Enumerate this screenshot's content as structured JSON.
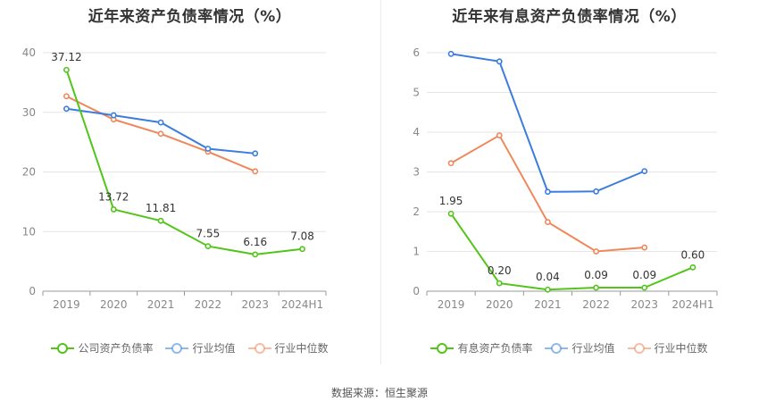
{
  "footer": {
    "source_label": "数据来源：恒生聚源"
  },
  "chart_data": [
    {
      "type": "line",
      "title": "近年来资产负债率情况（%）",
      "categories": [
        "2019",
        "2020",
        "2021",
        "2022",
        "2023",
        "2024H1"
      ],
      "ylim": [
        0,
        40
      ],
      "yticks": [
        0,
        10,
        20,
        30,
        40
      ],
      "grid": true,
      "legend_position": "bottom",
      "series": [
        {
          "name": "公司资产负债率",
          "color": "#52c41a",
          "show_labels": true,
          "values": [
            37.12,
            13.72,
            11.81,
            7.55,
            6.16,
            7.08
          ],
          "labels": [
            "37.12",
            "13.72",
            "11.81",
            "7.55",
            "6.16",
            "7.08"
          ]
        },
        {
          "name": "行业均值",
          "color": "#3b7ddd",
          "show_labels": false,
          "values": [
            30.6,
            29.5,
            28.3,
            23.9,
            23.1,
            null
          ]
        },
        {
          "name": "行业中位数",
          "color": "#f0875a",
          "show_labels": false,
          "values": [
            32.7,
            28.8,
            26.4,
            23.4,
            20.1,
            null
          ]
        }
      ]
    },
    {
      "type": "line",
      "title": "近年来有息资产负债率情况（%）",
      "categories": [
        "2019",
        "2020",
        "2021",
        "2022",
        "2023",
        "2024H1"
      ],
      "ylim": [
        0,
        6
      ],
      "yticks": [
        0,
        1,
        2,
        3,
        4,
        5,
        6
      ],
      "grid": true,
      "legend_position": "bottom",
      "series": [
        {
          "name": "有息资产负债率",
          "color": "#52c41a",
          "show_labels": true,
          "values": [
            1.95,
            0.2,
            0.04,
            0.09,
            0.09,
            0.6
          ],
          "labels": [
            "1.95",
            "0.20",
            "0.04",
            "0.09",
            "0.09",
            "0.60"
          ]
        },
        {
          "name": "行业均值",
          "color": "#3b7ddd",
          "show_labels": false,
          "values": [
            5.97,
            5.78,
            2.5,
            2.51,
            3.02,
            null
          ]
        },
        {
          "name": "行业中位数",
          "color": "#f0875a",
          "show_labels": false,
          "values": [
            3.22,
            3.92,
            1.74,
            1.0,
            1.1,
            null
          ]
        }
      ]
    }
  ]
}
